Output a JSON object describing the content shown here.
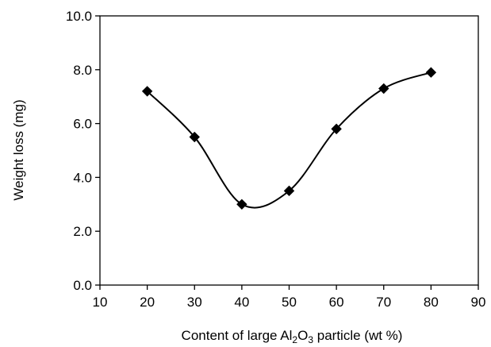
{
  "chart_data": {
    "type": "scatter",
    "series": [
      {
        "marker": "diamond",
        "line": "smooth",
        "color": "#000000",
        "x": [
          20,
          30,
          40,
          50,
          60,
          70,
          80
        ],
        "y": [
          7.2,
          5.5,
          3.0,
          3.5,
          5.8,
          7.3,
          7.9
        ]
      }
    ],
    "xlim": [
      10,
      90
    ],
    "ylim": [
      0,
      10
    ],
    "xticks": [
      "10",
      "20",
      "30",
      "40",
      "50",
      "60",
      "70",
      "80",
      "90"
    ],
    "yticks": [
      "0.0",
      "2.0",
      "4.0",
      "6.0",
      "8.0",
      "10.0"
    ],
    "xlabel": {
      "pre": "Content of large Al",
      "sub1": "2",
      "mid": "O",
      "sub2": "3",
      "post": " particle (wt %)"
    },
    "ylabel": "Weight loss (mg)",
    "grid": false,
    "legend": "none"
  }
}
